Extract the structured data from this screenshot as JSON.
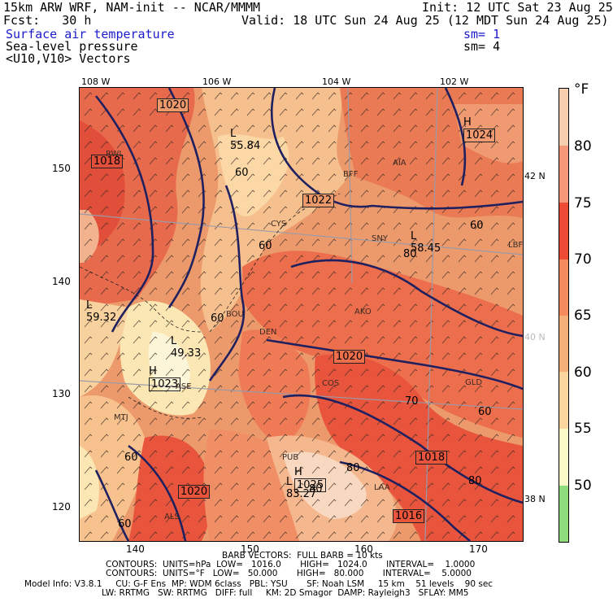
{
  "header": {
    "line1_left": "15km ARW WRF, NAM-init -- NCAR/MMMM",
    "line1_right": "Init: 12 UTC Sat 23 Aug 25",
    "line2_left": "Fcst:   30 h",
    "line2_right": "Valid: 18 UTC Sun 24 Aug 25 (12 MDT Sun 24 Aug 25)",
    "field1": "Surface air temperature",
    "field1_sm": "sm= 1",
    "field2": "Sea-level pressure",
    "field2_sm": "sm= 4",
    "field3": "<U10,V10> Vectors"
  },
  "lon_labels": [
    "108 W",
    "106 W",
    "104 W",
    "102 W"
  ],
  "lat_labels": [
    "42 N",
    "40 N",
    "38 N"
  ],
  "grid_x_labels": [
    "140",
    "150",
    "160",
    "170"
  ],
  "grid_y_labels": [
    "150",
    "140",
    "130",
    "120"
  ],
  "colorbar": {
    "unit": "°F",
    "labels": [
      "80",
      "75",
      "70",
      "65",
      "60",
      "55",
      "50"
    ],
    "colors": [
      "#f7cfae",
      "#f49879",
      "#ee4b36",
      "#f58a5c",
      "#f5b07a",
      "#fbd69e",
      "#fbf8c8",
      "#8fdc7c"
    ]
  },
  "map_labels": {
    "highs": [
      {
        "name": "H",
        "value": "1024"
      },
      {
        "name": "H",
        "value": "1023"
      },
      {
        "name": "H",
        "value": "1025"
      }
    ],
    "lows": [
      {
        "name": "L",
        "value": "55.84"
      },
      {
        "name": "L",
        "value": "58.45"
      },
      {
        "name": "L",
        "value": "59.32"
      },
      {
        "name": "L",
        "value": "49.33"
      },
      {
        "name": "L",
        "value": "83.27"
      }
    ],
    "isobars": [
      "1020",
      "1018",
      "1022",
      "1020",
      "1018",
      "1016",
      "1020"
    ],
    "isotherms": [
      "60",
      "60",
      "60",
      "60",
      "60",
      "70",
      "80",
      "60",
      "80",
      "80",
      "60",
      "80"
    ],
    "stations": [
      "RWL",
      "BFF",
      "AIA",
      "CYS",
      "SNY",
      "LBF",
      "BOU",
      "DEN",
      "AKO",
      "COS",
      "GLD",
      "PUB",
      "LAA",
      "ALS",
      "ASE",
      "MTJ"
    ]
  },
  "footer": {
    "line1": "BARB VECTORS:  FULL BARB = 10 kts",
    "line2": "CONTOURS:  UNITS=hPa  LOW=   1016.0       HIGH=   1024.0       INTERVAL=    1.0000",
    "line3": "CONTOURS:  UNITS=°F   LOW=   50.000       HIGH=   80.000       INTERVAL=    5.0000",
    "line4": "Model Info: V3.8.1     CU: G-F Ens  MP: WDM 6class   PBL: YSU       SF: Noah LSM     15 km    51 levels    90 sec",
    "line5": "LW: RRTMG   SW: RRTMG   DIFF: full     KM: 2D Smagor  DAMP: Rayleigh3   SFLAY: MM5"
  }
}
